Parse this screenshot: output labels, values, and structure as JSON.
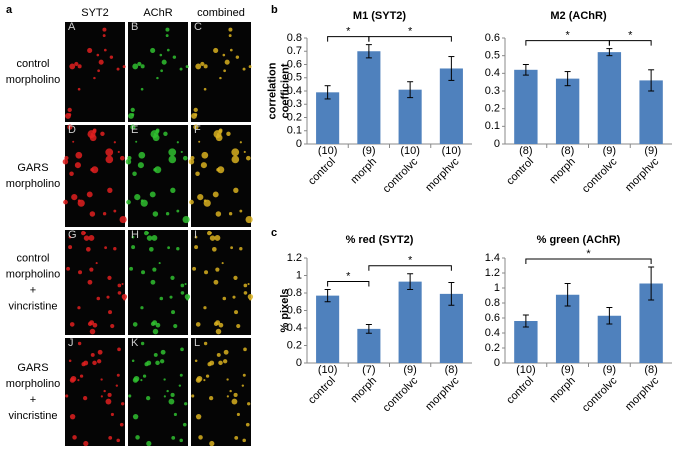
{
  "panel_a": {
    "letter": "a",
    "columns": [
      "SYT2",
      "AChR",
      "combined"
    ],
    "rows": [
      [
        "control",
        "morpholino"
      ],
      [
        "GARS",
        "morpholino"
      ],
      [
        "control",
        "morpholino",
        "+",
        "vincristine"
      ],
      [
        "GARS",
        "morpholino",
        "+",
        "vincristine"
      ]
    ],
    "image_letters": [
      "A",
      "B",
      "C",
      "D",
      "E",
      "F",
      "G",
      "H",
      "I",
      "J",
      "K",
      "L"
    ]
  },
  "panel_letters": [
    "b",
    "c"
  ],
  "chart_data": [
    {
      "type": "bar",
      "title": "M1 (SYT2)",
      "ylabel": [
        "correlation",
        "coefficient"
      ],
      "categories": [
        "control",
        "morph",
        "controlvc",
        "morphvc"
      ],
      "values": [
        0.39,
        0.7,
        0.41,
        0.57
      ],
      "errors": [
        0.05,
        0.05,
        0.06,
        0.09
      ],
      "n_labels": [
        "(10)",
        "(9)",
        "(10)",
        "(10)"
      ],
      "significance": [
        {
          "from": 0,
          "to": 1,
          "label": "*"
        },
        {
          "from": 1,
          "to": 3,
          "label": "*"
        }
      ],
      "ylim": [
        0,
        0.8
      ],
      "yticks": [
        0,
        0.1,
        0.2,
        0.3,
        0.4,
        0.5,
        0.6,
        0.7,
        0.8
      ],
      "color": "#4f81bd"
    },
    {
      "type": "bar",
      "title": "M2 (AChR)",
      "categories": [
        "control",
        "morph",
        "controlvc",
        "morphvc"
      ],
      "values": [
        0.42,
        0.37,
        0.52,
        0.36
      ],
      "errors": [
        0.03,
        0.04,
        0.02,
        0.06
      ],
      "n_labels": [
        "(8)",
        "(8)",
        "(9)",
        "(9)"
      ],
      "significance": [
        {
          "from": 0,
          "to": 2,
          "label": "*"
        },
        {
          "from": 2,
          "to": 3,
          "label": "*"
        }
      ],
      "ylim": [
        0,
        0.6
      ],
      "yticks": [
        0,
        0.1,
        0.2,
        0.3,
        0.4,
        0.5,
        0.6
      ],
      "color": "#4f81bd"
    },
    {
      "type": "bar",
      "title": "% red (SYT2)",
      "ylabel": [
        "% pixels"
      ],
      "categories": [
        "control",
        "morph",
        "controlvc",
        "morphvc"
      ],
      "values": [
        0.77,
        0.39,
        0.93,
        0.79
      ],
      "errors": [
        0.07,
        0.05,
        0.09,
        0.13
      ],
      "n_labels": [
        "(10)",
        "(7)",
        "(9)",
        "(8)"
      ],
      "significance": [
        {
          "from": 0,
          "to": 1,
          "label": "*"
        },
        {
          "from": 1,
          "to": 3,
          "label": "*"
        }
      ],
      "ylim": [
        0,
        1.2
      ],
      "yticks": [
        0,
        0.2,
        0.4,
        0.6,
        0.8,
        1,
        1.2
      ],
      "color": "#4f81bd"
    },
    {
      "type": "bar",
      "title": "% green (AChR)",
      "categories": [
        "control",
        "morph",
        "controlvc",
        "morphvc"
      ],
      "values": [
        0.56,
        0.91,
        0.63,
        1.06
      ],
      "errors": [
        0.08,
        0.15,
        0.11,
        0.22
      ],
      "n_labels": [
        "(10)",
        "(9)",
        "(9)",
        "(8)"
      ],
      "significance": [
        {
          "from": 0,
          "to": 3,
          "label": "*"
        }
      ],
      "ylim": [
        0,
        1.4
      ],
      "yticks": [
        0,
        0.2,
        0.4,
        0.6,
        0.8,
        1,
        1.2,
        1.4
      ],
      "color": "#4f81bd"
    }
  ]
}
